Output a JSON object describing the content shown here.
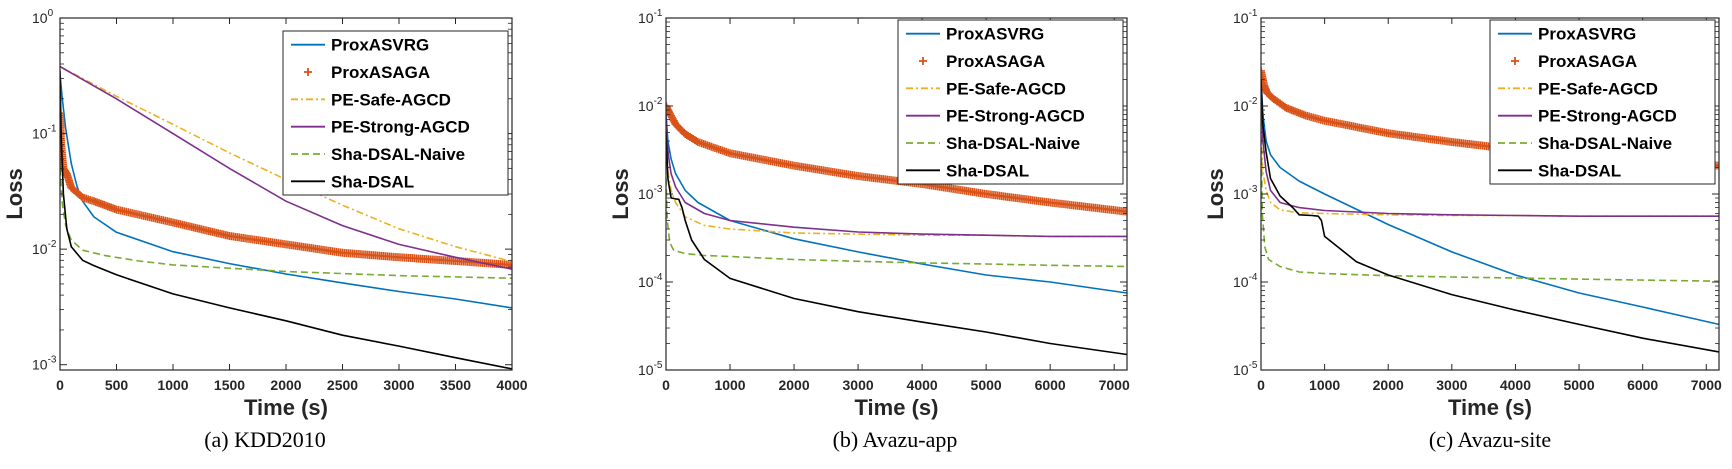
{
  "series_style": {
    "ProxASVRG": {
      "color": "#0072BD",
      "dash": "solid",
      "marker": "none"
    },
    "ProxASAGA": {
      "color": "#D95319",
      "dash": "none",
      "marker": "plus"
    },
    "PE-Safe-AGCD": {
      "color": "#EDB120",
      "dash": "dashdot",
      "marker": "none"
    },
    "PE-Strong-AGCD": {
      "color": "#7E2F8E",
      "dash": "solid",
      "marker": "none"
    },
    "Sha-DSAL-Naive": {
      "color": "#77AC30",
      "dash": "dashed",
      "marker": "none"
    },
    "Sha-DSAL": {
      "color": "#000000",
      "dash": "solid",
      "marker": "none"
    }
  },
  "chart_data": [
    {
      "type": "line",
      "caption": "(a)  KDD2010",
      "xlabel": "Time (s)",
      "ylabel": "Loss",
      "yscale": "log",
      "xlim": [
        0,
        4000
      ],
      "ylim": [
        0.0009,
        1
      ],
      "xticks": [
        0,
        500,
        1000,
        1500,
        2000,
        2500,
        3000,
        3500,
        4000
      ],
      "xtick_labels": [
        "0",
        "500",
        "1000",
        "1500",
        "2000",
        "2500",
        "3000",
        "3500",
        "4000"
      ],
      "yticks": [
        0.001,
        0.01,
        0.1,
        1
      ],
      "ytick_labels": [
        {
          "base": "10",
          "exp": "-3"
        },
        {
          "base": "10",
          "exp": "-2"
        },
        {
          "base": "10",
          "exp": "-1"
        },
        {
          "base": "10",
          "exp": "0"
        }
      ],
      "legend_position": "top-right",
      "series": [
        {
          "name": "ProxASVRG",
          "x": [
            0,
            20,
            50,
            100,
            150,
            200,
            300,
            500,
            1000,
            1500,
            2000,
            2500,
            3000,
            3500,
            4000
          ],
          "y": [
            0.33,
            0.2,
            0.11,
            0.055,
            0.035,
            0.026,
            0.019,
            0.014,
            0.0095,
            0.0075,
            0.0061,
            0.0051,
            0.0043,
            0.0037,
            0.0031
          ]
        },
        {
          "name": "ProxASAGA",
          "x": [
            0,
            10,
            30,
            60,
            100,
            200,
            300,
            500,
            1000,
            1500,
            2000,
            2500,
            3000,
            3500,
            4000
          ],
          "y": [
            0.15,
            0.08,
            0.05,
            0.045,
            0.034,
            0.028,
            0.026,
            0.022,
            0.017,
            0.013,
            0.011,
            0.0093,
            0.0085,
            0.0079,
            0.0073
          ]
        },
        {
          "name": "PE-Safe-AGCD",
          "x": [
            0,
            500,
            1000,
            1500,
            2000,
            2500,
            3000,
            3500,
            4000
          ],
          "y": [
            0.38,
            0.21,
            0.12,
            0.068,
            0.04,
            0.024,
            0.015,
            0.0105,
            0.0078
          ]
        },
        {
          "name": "PE-Strong-AGCD",
          "x": [
            0,
            500,
            1000,
            1500,
            2000,
            2500,
            3000,
            3500,
            4000
          ],
          "y": [
            0.38,
            0.2,
            0.1,
            0.05,
            0.026,
            0.016,
            0.011,
            0.0085,
            0.0067
          ]
        },
        {
          "name": "Sha-DSAL-Naive",
          "x": [
            0,
            20,
            50,
            100,
            200,
            400,
            700,
            1000,
            2000,
            3000,
            4000
          ],
          "y": [
            0.05,
            0.025,
            0.016,
            0.012,
            0.0098,
            0.0088,
            0.0079,
            0.0073,
            0.0064,
            0.0059,
            0.0056
          ]
        },
        {
          "name": "Sha-DSAL",
          "x": [
            0,
            10,
            30,
            60,
            100,
            200,
            300,
            500,
            1000,
            1500,
            2000,
            2500,
            3000,
            3500,
            4000
          ],
          "y": [
            0.35,
            0.1,
            0.03,
            0.015,
            0.0105,
            0.008,
            0.0072,
            0.006,
            0.0041,
            0.0031,
            0.0024,
            0.0018,
            0.00145,
            0.00115,
            0.00092
          ]
        }
      ]
    },
    {
      "type": "line",
      "caption": "(b)  Avazu-app",
      "xlabel": "Time (s)",
      "ylabel": "Loss",
      "yscale": "log",
      "xlim": [
        0,
        7200
      ],
      "ylim": [
        1e-05,
        0.1
      ],
      "xticks": [
        0,
        1000,
        2000,
        3000,
        4000,
        5000,
        6000,
        7000
      ],
      "xtick_labels": [
        "0",
        "1000",
        "2000",
        "3000",
        "4000",
        "5000",
        "6000",
        "7000"
      ],
      "yticks": [
        1e-05,
        0.0001,
        0.001,
        0.01,
        0.1
      ],
      "ytick_labels": [
        {
          "base": "10",
          "exp": "-5"
        },
        {
          "base": "10",
          "exp": "-4"
        },
        {
          "base": "10",
          "exp": "-3"
        },
        {
          "base": "10",
          "exp": "-2"
        },
        {
          "base": "10",
          "exp": "-1"
        }
      ],
      "legend_position": "top-right",
      "series": [
        {
          "name": "ProxASVRG",
          "x": [
            0,
            30,
            80,
            150,
            300,
            500,
            1000,
            2000,
            3000,
            4000,
            5000,
            6000,
            7200
          ],
          "y": [
            0.008,
            0.004,
            0.0025,
            0.0017,
            0.0011,
            0.0008,
            0.0005,
            0.00031,
            0.00022,
            0.00016,
            0.00012,
            0.0001,
            7.5e-05
          ]
        },
        {
          "name": "ProxASAGA",
          "x": [
            0,
            50,
            150,
            300,
            500,
            1000,
            2000,
            3000,
            4000,
            5000,
            6000,
            7200
          ],
          "y": [
            0.01,
            0.0085,
            0.0062,
            0.0048,
            0.0039,
            0.0029,
            0.0021,
            0.0016,
            0.0013,
            0.001,
            0.0008,
            0.00063
          ]
        },
        {
          "name": "PE-Safe-AGCD",
          "x": [
            0,
            30,
            80,
            150,
            300,
            600,
            1000,
            2000,
            3000,
            4000,
            5000,
            6000,
            7200
          ],
          "y": [
            0.004,
            0.0018,
            0.0011,
            0.0008,
            0.00055,
            0.00044,
            0.0004,
            0.00036,
            0.00035,
            0.00034,
            0.00034,
            0.00033,
            0.00033
          ]
        },
        {
          "name": "PE-Strong-AGCD",
          "x": [
            0,
            30,
            80,
            150,
            300,
            600,
            1000,
            2000,
            3000,
            4000,
            5000,
            6000,
            7200
          ],
          "y": [
            0.008,
            0.003,
            0.0017,
            0.0012,
            0.0008,
            0.0006,
            0.0005,
            0.00042,
            0.00037,
            0.00035,
            0.00034,
            0.00033,
            0.00033
          ]
        },
        {
          "name": "Sha-DSAL-Naive",
          "x": [
            0,
            20,
            60,
            120,
            300,
            600,
            1000,
            2000,
            3000,
            4000,
            5000,
            6000,
            7200
          ],
          "y": [
            0.0015,
            0.0005,
            0.00028,
            0.00023,
            0.00021,
            0.0002,
            0.000195,
            0.00018,
            0.000172,
            0.000165,
            0.00016,
            0.000155,
            0.00015
          ]
        },
        {
          "name": "Sha-DSAL",
          "x": [
            0,
            30,
            80,
            150,
            200,
            250,
            300,
            400,
            600,
            1000,
            2000,
            3000,
            4000,
            5000,
            6000,
            7200
          ],
          "y": [
            0.005,
            0.0015,
            0.0009,
            0.00088,
            0.00087,
            0.0007,
            0.0005,
            0.0003,
            0.00018,
            0.00011,
            6.5e-05,
            4.6e-05,
            3.5e-05,
            2.7e-05,
            2e-05,
            1.5e-05
          ]
        }
      ]
    },
    {
      "type": "line",
      "caption": "(c)  Avazu-site",
      "xlabel": "Time (s)",
      "ylabel": "Loss",
      "yscale": "log",
      "xlim": [
        0,
        7200
      ],
      "ylim": [
        1e-05,
        0.1
      ],
      "xticks": [
        0,
        1000,
        2000,
        3000,
        4000,
        5000,
        6000,
        7000
      ],
      "xtick_labels": [
        "0",
        "1000",
        "2000",
        "3000",
        "4000",
        "5000",
        "6000",
        "7000"
      ],
      "yticks": [
        1e-05,
        0.0001,
        0.001,
        0.01,
        0.1
      ],
      "ytick_labels": [
        {
          "base": "10",
          "exp": "-5"
        },
        {
          "base": "10",
          "exp": "-4"
        },
        {
          "base": "10",
          "exp": "-3"
        },
        {
          "base": "10",
          "exp": "-2"
        },
        {
          "base": "10",
          "exp": "-1"
        }
      ],
      "legend_position": "top-right",
      "series": [
        {
          "name": "ProxASVRG",
          "x": [
            0,
            30,
            80,
            150,
            300,
            600,
            1000,
            2000,
            3000,
            4000,
            5000,
            6000,
            7200
          ],
          "y": [
            0.02,
            0.008,
            0.004,
            0.0028,
            0.002,
            0.0014,
            0.001,
            0.00045,
            0.00022,
            0.00012,
            7.5e-05,
            5.2e-05,
            3.3e-05
          ]
        },
        {
          "name": "ProxASAGA",
          "x": [
            0,
            50,
            100,
            200,
            400,
            700,
            1000,
            2000,
            3000,
            4000,
            5000,
            6000,
            7200
          ],
          "y": [
            0.025,
            0.017,
            0.014,
            0.012,
            0.0095,
            0.0078,
            0.0068,
            0.0049,
            0.0039,
            0.0032,
            0.0027,
            0.0024,
            0.0021
          ]
        },
        {
          "name": "PE-Safe-AGCD",
          "x": [
            0,
            30,
            80,
            150,
            300,
            600,
            1000,
            2000,
            3000,
            4000,
            5000,
            6000,
            7200
          ],
          "y": [
            0.005,
            0.0018,
            0.0011,
            0.0008,
            0.00066,
            0.00061,
            0.0006,
            0.00058,
            0.00057,
            0.00057,
            0.00056,
            0.00056,
            0.00056
          ]
        },
        {
          "name": "PE-Strong-AGCD",
          "x": [
            0,
            30,
            80,
            150,
            300,
            600,
            1000,
            2000,
            3000,
            4000,
            5000,
            6000,
            7200
          ],
          "y": [
            0.02,
            0.004,
            0.0018,
            0.0011,
            0.0008,
            0.0007,
            0.00065,
            0.0006,
            0.00058,
            0.00057,
            0.00056,
            0.00056,
            0.00056
          ]
        },
        {
          "name": "Sha-DSAL-Naive",
          "x": [
            0,
            20,
            60,
            120,
            300,
            600,
            1000,
            2000,
            3000,
            4000,
            5000,
            6000,
            7200
          ],
          "y": [
            0.006,
            0.0006,
            0.00025,
            0.00018,
            0.00015,
            0.00013,
            0.000125,
            0.000118,
            0.000114,
            0.000111,
            0.000108,
            0.000105,
            0.000102
          ]
        },
        {
          "name": "Sha-DSAL",
          "x": [
            0,
            30,
            80,
            150,
            300,
            500,
            600,
            800,
            900,
            950,
            1000,
            1500,
            2000,
            3000,
            4000,
            5000,
            6000,
            7200
          ],
          "y": [
            0.02,
            0.006,
            0.003,
            0.0015,
            0.00095,
            0.0007,
            0.00058,
            0.00057,
            0.00056,
            0.0005,
            0.00033,
            0.00017,
            0.00012,
            7.2e-05,
            4.8e-05,
            3.3e-05,
            2.3e-05,
            1.6e-05
          ]
        }
      ]
    }
  ]
}
